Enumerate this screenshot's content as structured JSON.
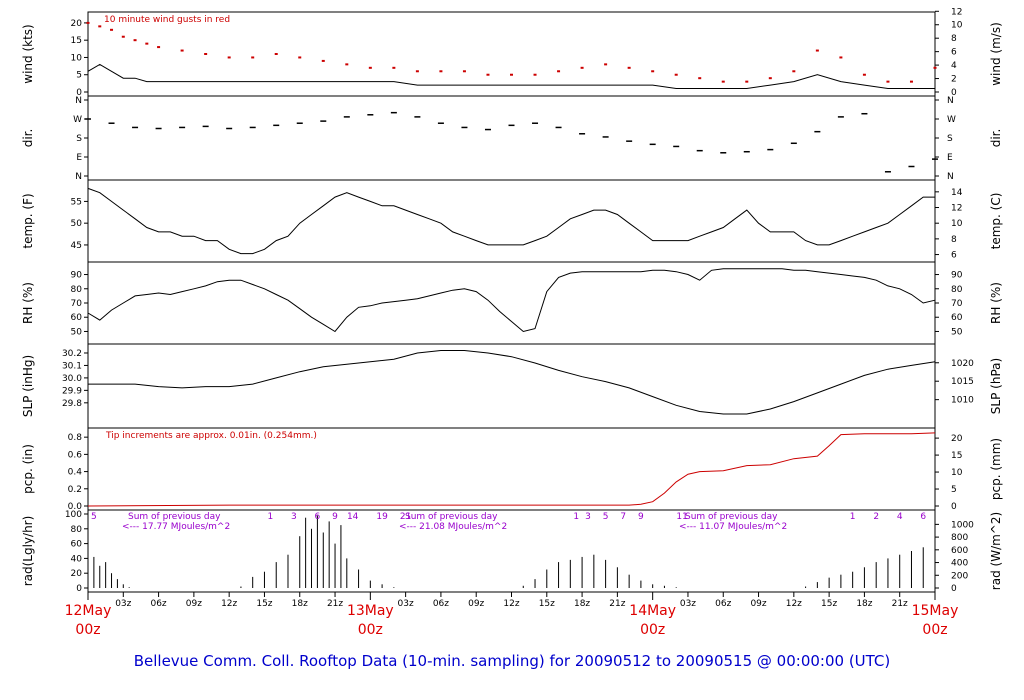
{
  "title": "Bellevue Comm. Coll. Rooftop Data (10-min. sampling) for 20090512  to  20090515 @ 00:00:00  (UTC)",
  "colors": {
    "trace": "#000000",
    "gust": "#cc0000",
    "precip": "#cc0000",
    "date_label": "#dd0000",
    "annotation": "#9900cc",
    "title": "#0000cc"
  },
  "x_axis": {
    "hour_ticks": [
      "03z",
      "06z",
      "09z",
      "12z",
      "15z",
      "18z",
      "21z",
      "03z",
      "06z",
      "09z",
      "12z",
      "15z",
      "18z",
      "21z",
      "03z",
      "06z",
      "09z",
      "12z",
      "15z",
      "18z",
      "21z"
    ],
    "day_labels": [
      {
        "day": "12May",
        "hour": "00z",
        "at_hours": 0
      },
      {
        "day": "13May",
        "hour": "00z",
        "at_hours": 24
      },
      {
        "day": "14May",
        "hour": "00z",
        "at_hours": 48
      },
      {
        "day": "15May",
        "hour": "00z",
        "at_hours": 72
      }
    ]
  },
  "chart_data": [
    {
      "panel": "wind",
      "type": "line",
      "ylabel_left": "wind (kts)",
      "ylabel_right": "wind (m/s)",
      "ylim": [
        0,
        22
      ],
      "yticks": [
        0,
        5,
        10,
        15,
        20
      ],
      "right_ylim": [
        0,
        11.3
      ],
      "right_yticks": [
        0,
        2,
        4,
        6,
        8,
        10,
        12
      ],
      "annotation": "10  minute wind gusts in red",
      "x_hours": [
        0,
        1,
        2,
        3,
        4,
        5,
        6,
        8,
        10,
        12,
        14,
        16,
        18,
        20,
        22,
        24,
        26,
        28,
        30,
        32,
        34,
        36,
        38,
        40,
        42,
        44,
        46,
        48,
        50,
        52,
        54,
        56,
        58,
        60,
        62,
        64,
        66,
        68,
        70,
        72
      ],
      "series": [
        {
          "name": "10  minute wind gusts in red",
          "kind": "gust",
          "values": [
            20,
            19,
            18,
            16,
            15,
            14,
            13,
            12,
            11,
            10,
            10,
            11,
            10,
            9,
            8,
            7,
            7,
            6,
            6,
            6,
            5,
            5,
            5,
            6,
            7,
            8,
            7,
            6,
            5,
            4,
            3,
            3,
            4,
            6,
            12,
            10,
            5,
            3,
            3,
            7
          ]
        },
        {
          "kind": "mean",
          "values": [
            6,
            8,
            6,
            4,
            4,
            3,
            3,
            3,
            3,
            3,
            3,
            3,
            3,
            3,
            3,
            3,
            3,
            2,
            2,
            2,
            2,
            2,
            2,
            2,
            2,
            2,
            2,
            2,
            1,
            1,
            1,
            1,
            2,
            3,
            5,
            3,
            2,
            1,
            1,
            1
          ]
        }
      ]
    },
    {
      "panel": "dir",
      "type": "scatter",
      "ylabel_left": "dir.",
      "ylabel_right": "dir.",
      "ylim": [
        0,
        360
      ],
      "yticks": [
        0,
        90,
        180,
        270,
        360
      ],
      "ytick_labels": [
        "N",
        "E",
        "S",
        "W",
        "N"
      ],
      "x_hours": [
        0,
        2,
        4,
        6,
        8,
        10,
        12,
        14,
        16,
        18,
        20,
        22,
        24,
        26,
        28,
        30,
        32,
        34,
        36,
        38,
        40,
        42,
        44,
        46,
        48,
        50,
        52,
        54,
        56,
        58,
        60,
        62,
        64,
        66,
        68,
        70,
        72
      ],
      "values": [
        270,
        250,
        230,
        225,
        230,
        235,
        225,
        230,
        240,
        250,
        260,
        280,
        290,
        300,
        280,
        250,
        230,
        220,
        240,
        250,
        230,
        200,
        185,
        165,
        150,
        140,
        120,
        110,
        115,
        125,
        155,
        210,
        280,
        295,
        20,
        45,
        80
      ]
    },
    {
      "panel": "temp",
      "type": "line",
      "ylabel_left": "temp. (F)",
      "ylabel_right": "temp. (C)",
      "ylim": [
        42,
        59
      ],
      "yticks": [
        45,
        50,
        55
      ],
      "right_ylim": [
        5.56,
        15
      ],
      "right_yticks": [
        6,
        8,
        10,
        12,
        14
      ],
      "x_hours": [
        0,
        1,
        2,
        3,
        4,
        5,
        6,
        7,
        8,
        9,
        10,
        11,
        12,
        13,
        14,
        15,
        16,
        17,
        18,
        19,
        20,
        21,
        22,
        23,
        24,
        25,
        26,
        27,
        28,
        29,
        30,
        31,
        32,
        33,
        34,
        35,
        36,
        37,
        38,
        39,
        40,
        41,
        42,
        43,
        44,
        45,
        46,
        47,
        48,
        49,
        50,
        51,
        52,
        53,
        54,
        55,
        56,
        57,
        58,
        59,
        60,
        61,
        62,
        63,
        64,
        65,
        66,
        67,
        68,
        69,
        70,
        71,
        72
      ],
      "values": [
        58,
        57,
        55,
        53,
        51,
        49,
        48,
        48,
        47,
        47,
        46,
        46,
        44,
        43,
        43,
        44,
        46,
        47,
        50,
        52,
        54,
        56,
        57,
        56,
        55,
        54,
        54,
        53,
        52,
        51,
        50,
        48,
        47,
        46,
        45,
        45,
        45,
        45,
        46,
        47,
        49,
        51,
        52,
        53,
        53,
        52,
        50,
        48,
        46,
        46,
        46,
        46,
        47,
        48,
        49,
        51,
        53,
        50,
        48,
        48,
        48,
        46,
        45,
        45,
        46,
        47,
        48,
        49,
        50,
        52,
        54,
        56,
        56
      ]
    },
    {
      "panel": "rh",
      "type": "line",
      "ylabel_left": "RH (%)",
      "ylabel_right": "RH (%)",
      "ylim": [
        44,
        96
      ],
      "yticks": [
        50,
        60,
        70,
        80,
        90
      ],
      "right_ylim": [
        44,
        96
      ],
      "right_yticks": [
        50,
        60,
        70,
        80,
        90
      ],
      "x_hours": [
        0,
        1,
        2,
        3,
        4,
        5,
        6,
        7,
        8,
        9,
        10,
        11,
        12,
        13,
        14,
        15,
        16,
        17,
        18,
        19,
        20,
        21,
        22,
        23,
        24,
        25,
        26,
        27,
        28,
        29,
        30,
        31,
        32,
        33,
        34,
        35,
        36,
        37,
        38,
        39,
        40,
        41,
        42,
        43,
        44,
        45,
        46,
        47,
        48,
        49,
        50,
        51,
        52,
        53,
        54,
        55,
        56,
        57,
        58,
        59,
        60,
        61,
        62,
        63,
        64,
        65,
        66,
        67,
        68,
        69,
        70,
        71,
        72
      ],
      "values": [
        63,
        58,
        65,
        70,
        75,
        76,
        77,
        76,
        78,
        80,
        82,
        85,
        86,
        86,
        83,
        80,
        76,
        72,
        66,
        60,
        55,
        50,
        60,
        67,
        68,
        70,
        71,
        72,
        73,
        75,
        77,
        79,
        80,
        78,
        72,
        64,
        57,
        50,
        52,
        78,
        88,
        91,
        92,
        92,
        92,
        92,
        92,
        92,
        93,
        93,
        92,
        90,
        86,
        93,
        94,
        94,
        94,
        94,
        94,
        94,
        93,
        93,
        92,
        91,
        90,
        89,
        88,
        86,
        82,
        80,
        76,
        70,
        72
      ]
    },
    {
      "panel": "slp",
      "type": "line",
      "ylabel_left": "SLP (inHg)",
      "ylabel_right": "SLP (hPa)",
      "ylim": [
        29.63,
        30.24
      ],
      "yticks": [
        29.8,
        29.9,
        30.0,
        30.1,
        30.2
      ],
      "ytick_labels": [
        "29.8",
        "29.9",
        "30.0",
        "30.1",
        "30.2"
      ],
      "right_ylim": [
        1003.4,
        1024.0
      ],
      "right_yticks": [
        1010,
        1015,
        1020
      ],
      "x_hours": [
        0,
        2,
        4,
        6,
        8,
        10,
        12,
        14,
        16,
        18,
        20,
        22,
        24,
        26,
        28,
        30,
        32,
        34,
        36,
        38,
        40,
        42,
        44,
        46,
        48,
        50,
        52,
        54,
        56,
        58,
        60,
        62,
        64,
        66,
        68,
        70,
        72
      ],
      "values": [
        29.95,
        29.95,
        29.95,
        29.93,
        29.92,
        29.93,
        29.93,
        29.95,
        30.0,
        30.05,
        30.09,
        30.11,
        30.13,
        30.15,
        30.2,
        30.22,
        30.22,
        30.2,
        30.17,
        30.12,
        30.06,
        30.01,
        29.97,
        29.92,
        29.85,
        29.78,
        29.73,
        29.71,
        29.71,
        29.75,
        29.81,
        29.88,
        29.95,
        30.02,
        30.07,
        30.1,
        30.13
      ]
    },
    {
      "panel": "pcp",
      "type": "line",
      "ylabel_left": "pcp. (in)",
      "ylabel_right": "pcp. (mm)",
      "ylim": [
        0,
        0.86
      ],
      "yticks": [
        0.0,
        0.2,
        0.4,
        0.6,
        0.8
      ],
      "ytick_labels": [
        "0.0",
        "0.2",
        "0.4",
        "0.6",
        "0.8"
      ],
      "right_ylim": [
        0,
        21.8
      ],
      "right_yticks": [
        0,
        5,
        10,
        15,
        20
      ],
      "annotation": "Tip increments are approx. 0.01in. (0.254mm.)",
      "x_hours": [
        0,
        12,
        24,
        36,
        46,
        47,
        48,
        49,
        50,
        51,
        52,
        54,
        56,
        58,
        60,
        62,
        63,
        64,
        66,
        70,
        72
      ],
      "values": [
        0.0,
        0.01,
        0.01,
        0.01,
        0.01,
        0.02,
        0.05,
        0.15,
        0.28,
        0.37,
        0.4,
        0.41,
        0.47,
        0.48,
        0.55,
        0.58,
        0.7,
        0.83,
        0.84,
        0.84,
        0.85
      ]
    },
    {
      "panel": "rad",
      "type": "bar",
      "ylabel_left": "rad(Lgly/hr)",
      "ylabel_right": "rad (W/m^2)",
      "ylim": [
        0,
        100
      ],
      "yticks": [
        0,
        20,
        40,
        60,
        80,
        100
      ],
      "right_ylim": [
        0,
        1163
      ],
      "right_yticks": [
        0,
        200,
        400,
        600,
        800,
        1000
      ],
      "x_hours": [
        0,
        0.5,
        1,
        1.5,
        2,
        2.5,
        3,
        3.5,
        13,
        14,
        15,
        16,
        17,
        18,
        18.5,
        19,
        19.5,
        20,
        20.5,
        21,
        21.5,
        22,
        23,
        24,
        25,
        26,
        37,
        38,
        39,
        40,
        41,
        42,
        43,
        44,
        45,
        46,
        47,
        48,
        49,
        50,
        61,
        62,
        63,
        64,
        65,
        66,
        67,
        68,
        69,
        70,
        71,
        72
      ],
      "values": [
        25,
        42,
        30,
        35,
        20,
        12,
        5,
        1,
        2,
        15,
        22,
        35,
        45,
        70,
        95,
        80,
        98,
        75,
        90,
        60,
        85,
        40,
        25,
        10,
        5,
        1,
        3,
        12,
        25,
        35,
        38,
        42,
        45,
        38,
        28,
        18,
        10,
        5,
        3,
        1,
        2,
        8,
        14,
        18,
        22,
        28,
        35,
        40,
        45,
        50,
        55,
        28
      ],
      "day_totals": [
        "Sum of previous day",
        "<--- 17.77 MJoules/m^2",
        "Sum of previous day",
        "<--- 21.08 MJoules/m^2",
        "Sum of previous day",
        "<--- 11.07 MJoules/m^2"
      ],
      "hour_markers": [
        "5",
        "1",
        "3",
        "6",
        "9",
        "14",
        "19",
        "21",
        "1",
        "3",
        "5",
        "7",
        "9",
        "11",
        "1",
        "2",
        "4",
        "6"
      ]
    }
  ]
}
